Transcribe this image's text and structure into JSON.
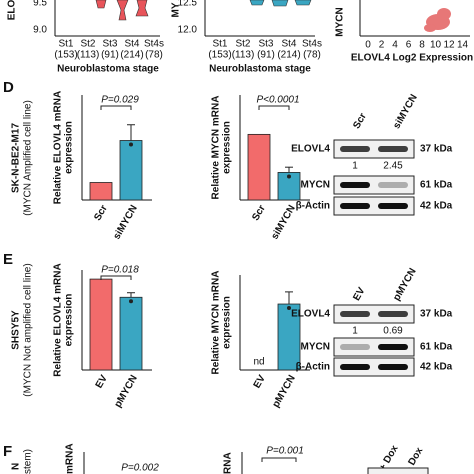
{
  "top_strip": {
    "left_axis": {
      "label": "ELO",
      "ticks": [
        "9.5",
        "9.0"
      ]
    },
    "mid_axis": {
      "label": "MY",
      "ticks": [
        "12.5",
        "12.0"
      ]
    },
    "stages": [
      {
        "name": "St1",
        "n": "(153)"
      },
      {
        "name": "St2",
        "n": "(113)"
      },
      {
        "name": "St3",
        "n": "(91)"
      },
      {
        "name": "St4",
        "n": "(214)"
      },
      {
        "name": "St4s",
        "n": "(78)"
      }
    ],
    "xlabel": "Neuroblastoma stage",
    "scatter": {
      "ylabel": "MYCN",
      "xticks": [
        0,
        2,
        4,
        6,
        8,
        10,
        12,
        14
      ],
      "xlabel": "ELOVL4 Log2 Expression"
    }
  },
  "panel_d": {
    "letter": "D",
    "cell_line": "SK-N-BE2-M17",
    "cell_note": "(MYCN Amplified cell line)",
    "charts": [
      {
        "ylabel": [
          "Relative ELOVL4 mRNA",
          "expression"
        ],
        "p": "P=0.029",
        "categories": [
          "Scr",
          "siMYCN"
        ],
        "values": [
          1,
          3.4
        ],
        "errors": [
          0,
          0.9
        ],
        "ylim": [
          0,
          6
        ],
        "colors": [
          "#f26b6b",
          "#3aa6c2"
        ]
      },
      {
        "ylabel": [
          "Relative MYCN mRNA",
          "expression"
        ],
        "p": "P<0.0001",
        "categories": [
          "Scr",
          "siMYCN"
        ],
        "values": [
          1,
          0.42
        ],
        "errors": [
          0,
          0.08
        ],
        "ylim": [
          0,
          1.6
        ],
        "colors": [
          "#f26b6b",
          "#3aa6c2"
        ]
      }
    ],
    "blot": {
      "lanes": [
        "Scr",
        "siMYCN"
      ],
      "rows": [
        {
          "protein": "ELOVL4",
          "kda": "37 kDa",
          "quant": [
            1,
            2.45
          ]
        },
        {
          "protein": "MYCN",
          "kda": "61 kDa"
        },
        {
          "protein": "β-Actin",
          "kda": "42 kDa"
        }
      ]
    }
  },
  "panel_e": {
    "letter": "E",
    "cell_line": "SHSY5Y",
    "cell_note": "(MYCN Not amplified cell line)",
    "charts": [
      {
        "ylabel": [
          "Relative ELOVL4 mRNA",
          "expression"
        ],
        "p": "P=0.018",
        "categories": [
          "EV",
          "pMYCN"
        ],
        "values": [
          1,
          0.8
        ],
        "errors": [
          0,
          0.05
        ],
        "ylim": [
          0,
          1.1
        ],
        "colors": [
          "#f26b6b",
          "#3aa6c2"
        ]
      },
      {
        "ylabel": [
          "Relative MYCN mRNA",
          "expression"
        ],
        "annotation": "nd",
        "categories": [
          "EV",
          "pMYCN"
        ],
        "values": [
          null,
          1250
        ],
        "errors": [
          null,
          230
        ],
        "ylim": [
          0,
          1800
        ],
        "colors": [
          "#f26b6b",
          "#3aa6c2"
        ]
      }
    ],
    "blot": {
      "lanes": [
        "EV",
        "pMYCN"
      ],
      "rows": [
        {
          "protein": "ELOVL4",
          "kda": "37 kDa",
          "quant": [
            1,
            0.69
          ]
        },
        {
          "protein": "MYCN",
          "kda": "61 kDa"
        },
        {
          "protein": "β-Actin",
          "kda": "42 kDa"
        }
      ]
    }
  },
  "panel_f": {
    "letter": "F",
    "side": [
      "N",
      "stem)"
    ],
    "chart1": {
      "ylabel": "mRNA",
      "p": "P=0.002"
    },
    "chart2": {
      "ylabel": "RNA",
      "p": "P=0.001"
    },
    "blot_lanes": [
      "+ Dox",
      "- Dox"
    ]
  }
}
